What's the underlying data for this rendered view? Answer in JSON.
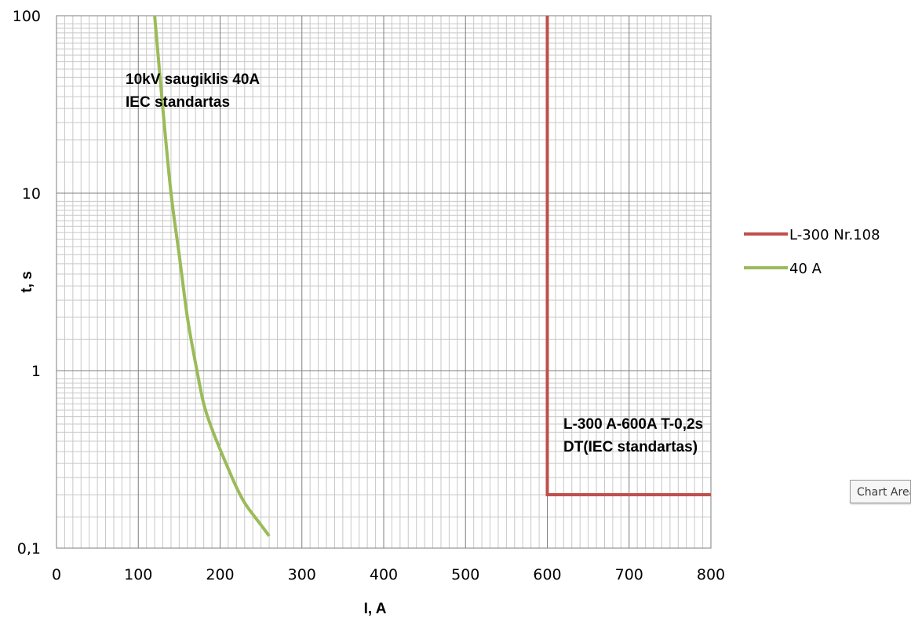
{
  "chart_data": {
    "type": "line",
    "xlabel": "I, A",
    "ylabel": "t, s",
    "xlim": [
      0,
      800
    ],
    "ylim": [
      0.1,
      100
    ],
    "y_scale": "log",
    "grid": true,
    "x_ticks": [
      "0",
      "100",
      "200",
      "300",
      "400",
      "500",
      "600",
      "700",
      "800"
    ],
    "y_ticks": [
      "0,1",
      "1",
      "10",
      "100"
    ],
    "legend_position": "right",
    "series": [
      {
        "name": "L-300 Nr.108",
        "color": "#c0504d",
        "x": [
          600,
          600,
          800
        ],
        "y": [
          100,
          0.2,
          0.2
        ]
      },
      {
        "name": "40 A",
        "color": "#9bbb59",
        "x": [
          120,
          130,
          140,
          150,
          160,
          170,
          180,
          190,
          200,
          210,
          220,
          230,
          240,
          250,
          260
        ],
        "y": [
          100,
          30,
          10,
          4.5,
          2,
          1.1,
          0.65,
          0.47,
          0.36,
          0.28,
          0.22,
          0.18,
          0.155,
          0.135,
          0.117
        ]
      }
    ],
    "annotations": [
      {
        "lines": [
          "10kV saugiklis 40A",
          "IEC standartas"
        ]
      },
      {
        "lines": [
          "L-300  A-600A T-0,2s",
          "DT(IEC standartas)"
        ]
      }
    ]
  },
  "tooltip": {
    "text": "Chart Area"
  }
}
